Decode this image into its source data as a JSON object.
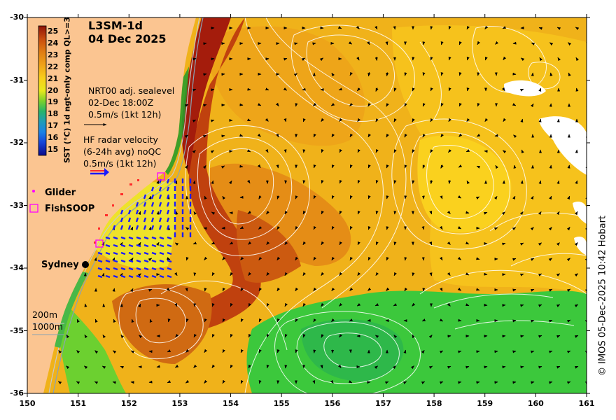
{
  "map": {
    "title_product": "L3SM-1d",
    "title_date": "04 Dec 2025",
    "sealevel_title": "NRT00 adj. sealevel",
    "sealevel_time": "02-Dec 18:00Z",
    "sealevel_scale": "0.5m/s (1kt 12h)",
    "radar_title": "HF radar velocity",
    "radar_detail": "(6-24h avg) noQC",
    "radar_scale": "0.5m/s (1kt 12h)",
    "legend_glider": "Glider",
    "legend_fishsoop": "FishSOOP",
    "city_label": "Sydney",
    "depth_200": "200m",
    "depth_1000": "1000m",
    "credit": "© IMOS 05-Dec-2025 10:42 Hobart",
    "colorbar_title": "SST (°C) 1d ngt-only comp QL>=3",
    "colorbar_ticks": [
      "25",
      "24",
      "23",
      "22",
      "21",
      "20",
      "19",
      "18",
      "17",
      "16",
      "15"
    ],
    "colorbar_range": [
      14.5,
      25.5
    ],
    "x_ticks": [
      "150",
      "151",
      "152",
      "153",
      "154",
      "155",
      "156",
      "157",
      "158",
      "159",
      "160",
      "161"
    ],
    "y_ticks": [
      "-30",
      "-31",
      "-32",
      "-33",
      "-34",
      "-35",
      "-36"
    ],
    "lon_range": [
      150,
      161
    ],
    "lat_range": [
      -36,
      -30
    ],
    "colors": {
      "land": "#fbc591",
      "radar_arrows": "#1a1aff",
      "glider": "#ff00ff",
      "fishsoop": "#ff00ff",
      "contours": "#ffffff",
      "warm_core": "#a41c0c",
      "cool_water": "#3cc83c"
    }
  }
}
